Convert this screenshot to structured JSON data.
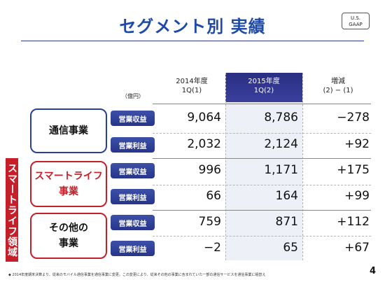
{
  "title": "セグメント別 実績",
  "gaap_line1": "U.S.",
  "gaap_line2": "GAAP",
  "unit": "（億円）",
  "columns": [
    {
      "line1": "2014年度",
      "line2": "1Q(1)"
    },
    {
      "line1": "2015年度",
      "line2": "1Q(2)"
    },
    {
      "line1": "増減",
      "line2": "(2) − (1)"
    }
  ],
  "vertical_label": "スマートライフ領域",
  "segments": [
    {
      "name_line1": "通信事業",
      "name_line2": ""
    },
    {
      "name_line1": "スマートライフ",
      "name_line2": "事業"
    },
    {
      "name_line1": "その他の",
      "name_line2": "事業"
    }
  ],
  "rows": [
    {
      "label": "営業収益",
      "v2014": "9,064",
      "v2015": "8,786",
      "diff": "−278"
    },
    {
      "label": "営業利益",
      "v2014": "2,032",
      "v2015": "2,124",
      "diff": "+92"
    },
    {
      "label": "営業収益",
      "v2014": "996",
      "v2015": "1,171",
      "diff": "+175"
    },
    {
      "label": "営業利益",
      "v2014": "66",
      "v2015": "164",
      "diff": "+99"
    },
    {
      "label": "営業収益",
      "v2014": "759",
      "v2015": "871",
      "diff": "+112"
    },
    {
      "label": "営業利益",
      "v2014": "−2",
      "v2015": "65",
      "diff": "+67"
    }
  ],
  "footnote": "◆ 2014年度期末決算より、従来のモバイル通信事業を通信事業に変更。この変更により、従来その他の事業に含まれていた一部の通信サービスを通信事業に組替え",
  "page_number": "4",
  "colors": {
    "title": "#1f4aa8",
    "pill": "#2f3f98",
    "accent_red": "#c51f2a",
    "highlight_header": "#2a2f82"
  }
}
